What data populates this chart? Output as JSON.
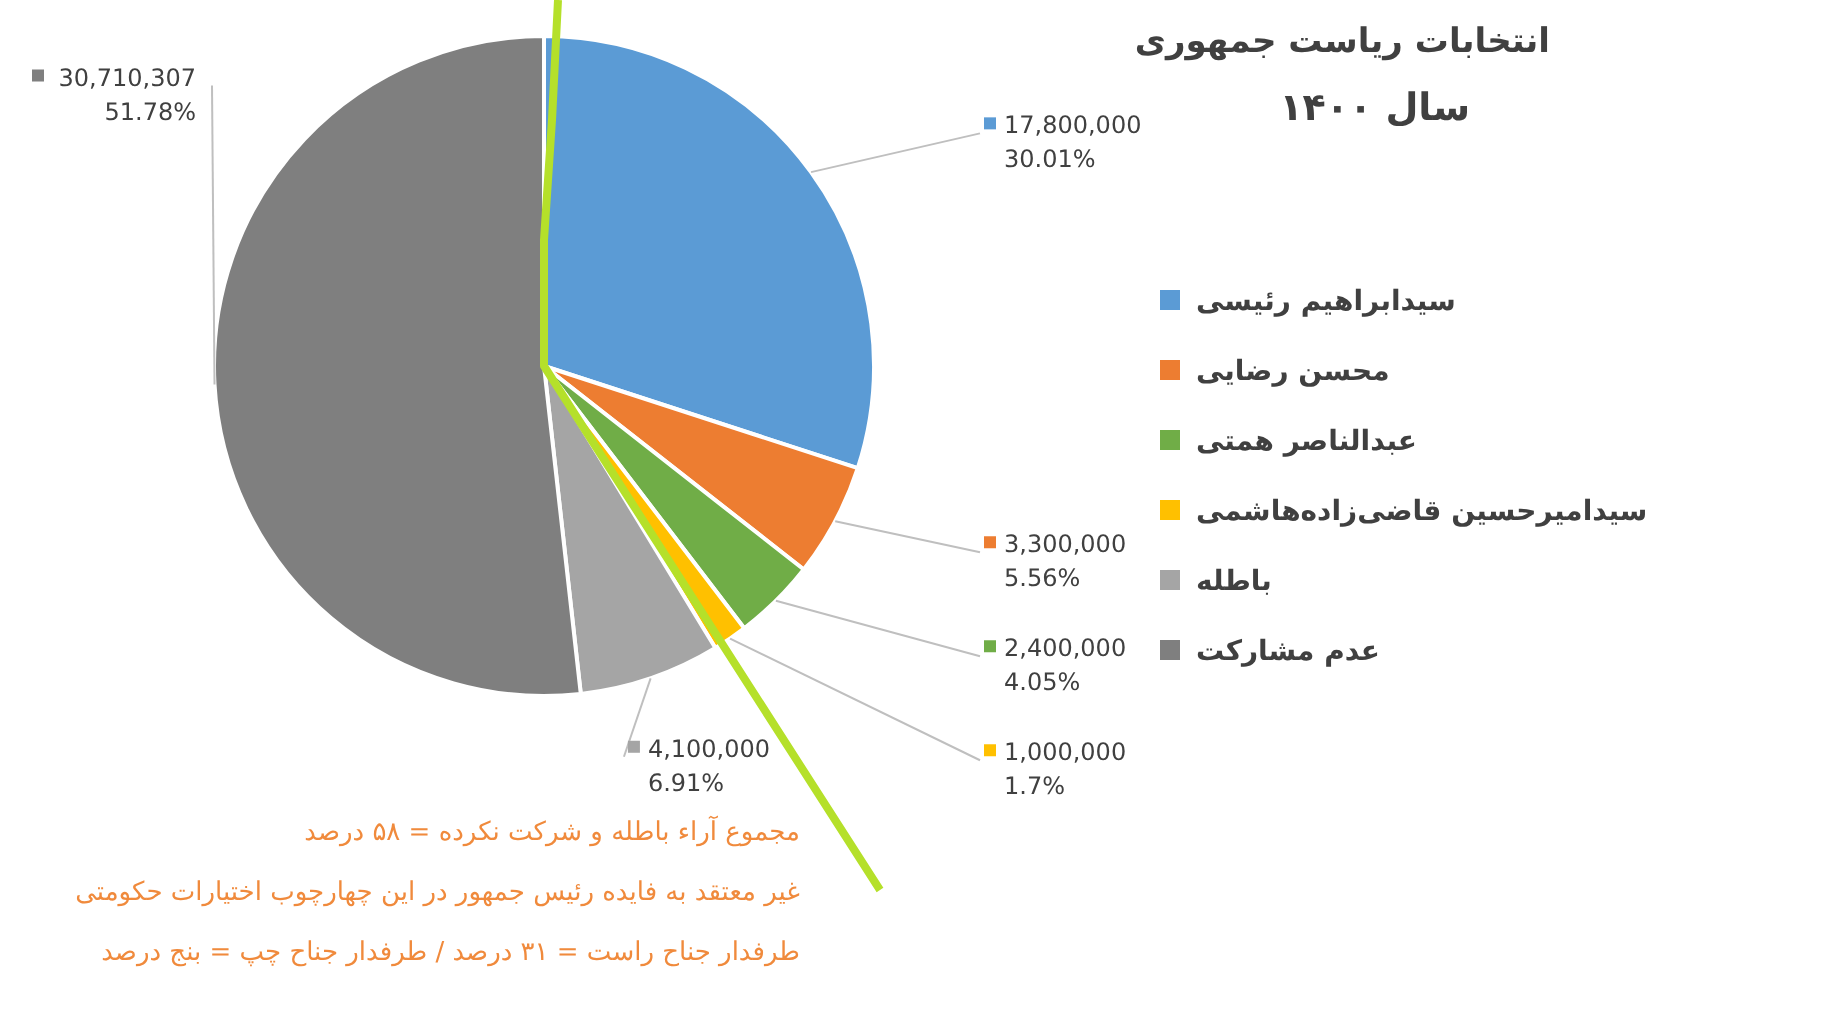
{
  "chart_data": {
    "type": "pie",
    "title": "انتخابات ریاست جمهوری",
    "subtitle": "سال ۱۴۰۰",
    "categories": [
      "سیدابراهیم رئیسی",
      "محسن رضایی",
      "عبدالناصر همتی",
      "سیدامیرحسین قاضی‌زاده‌هاشمی",
      "باطله",
      "عدم مشارکت"
    ],
    "values": [
      17800000,
      3300000,
      2400000,
      1000000,
      4100000,
      30710307
    ],
    "colors": [
      "#5b9bd5",
      "#ed7d31",
      "#70ad47",
      "#ffc000",
      "#a5a5a5",
      "#7f7f7f"
    ],
    "value_labels": [
      "17,800,000\n30.01%",
      "3,300,000\n5.56%",
      "2,400,000\n4.05%",
      "1,000,000\n1.7%",
      "4,100,000\n6.91%",
      "30,710,307\n51.78%"
    ],
    "legend": "right",
    "annotations": [
      "مجموع آراء باطله و شرکت نکرده = ۵۸ درصد",
      "غیر معتقد به فایده رئیس جمهور در این چهارچوب اختیارات حکومتی",
      "طرفدار جناح راست = ۳۱ درصد / طرفدار جناح چپ = بنج درصد"
    ]
  }
}
